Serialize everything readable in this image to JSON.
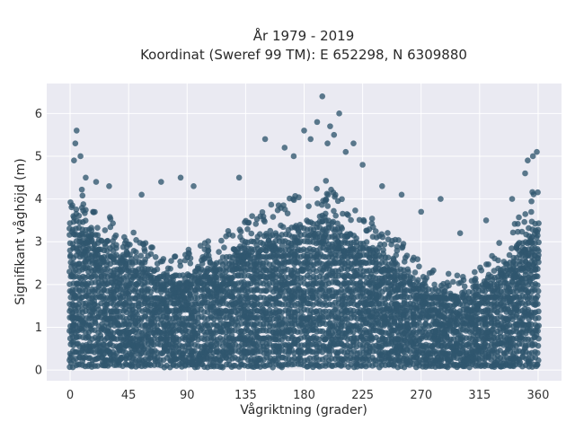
{
  "chart_data": {
    "type": "scatter",
    "title": "År 1979 - 2019",
    "subtitle": "Koordinat (Sweref 99 TM): E 652298, N 6309880",
    "xlabel": "Vågriktning (grader)",
    "ylabel": "Signifikant våghöjd (m)",
    "xlim": [
      -18,
      378
    ],
    "ylim": [
      -0.25,
      6.7
    ],
    "xticks": [
      0,
      45,
      90,
      135,
      180,
      225,
      270,
      315,
      360
    ],
    "yticks": [
      0,
      1,
      2,
      3,
      4,
      5,
      6
    ],
    "grid": true,
    "legend": "none",
    "colors": {
      "points": "#30566e",
      "background": "#eaeaf2",
      "grid": "#ffffff"
    },
    "series": [
      {
        "envelope_x": [
          0,
          5,
          10,
          20,
          30,
          45,
          60,
          75,
          90,
          105,
          120,
          135,
          150,
          165,
          180,
          195,
          210,
          225,
          240,
          255,
          270,
          285,
          300,
          315,
          330,
          345,
          355,
          360
        ],
        "envelope_ymax": [
          4.3,
          4.8,
          4.3,
          3.9,
          3.6,
          3.3,
          3.0,
          2.7,
          2.8,
          3.0,
          3.3,
          3.7,
          3.9,
          4.0,
          4.2,
          4.5,
          4.0,
          3.7,
          3.4,
          3.0,
          2.5,
          2.3,
          2.2,
          2.4,
          3.0,
          3.6,
          4.3,
          4.4
        ],
        "outliers": [
          [
            5,
            5.6
          ],
          [
            4,
            5.3
          ],
          [
            8,
            5.0
          ],
          [
            3,
            4.9
          ],
          [
            12,
            4.5
          ],
          [
            20,
            4.4
          ],
          [
            30,
            4.3
          ],
          [
            55,
            4.1
          ],
          [
            70,
            4.4
          ],
          [
            85,
            4.5
          ],
          [
            95,
            4.3
          ],
          [
            130,
            4.5
          ],
          [
            150,
            5.4
          ],
          [
            165,
            5.2
          ],
          [
            172,
            5.0
          ],
          [
            180,
            5.6
          ],
          [
            185,
            5.4
          ],
          [
            190,
            5.8
          ],
          [
            194,
            6.4
          ],
          [
            198,
            5.3
          ],
          [
            200,
            5.7
          ],
          [
            203,
            5.5
          ],
          [
            207,
            6.0
          ],
          [
            212,
            5.1
          ],
          [
            218,
            5.3
          ],
          [
            225,
            4.8
          ],
          [
            240,
            4.3
          ],
          [
            255,
            4.1
          ],
          [
            270,
            3.7
          ],
          [
            285,
            4.0
          ],
          [
            300,
            3.2
          ],
          [
            320,
            3.5
          ],
          [
            340,
            4.0
          ],
          [
            352,
            4.9
          ],
          [
            356,
            5.0
          ],
          [
            359,
            5.1
          ],
          [
            350,
            4.6
          ]
        ]
      }
    ]
  }
}
